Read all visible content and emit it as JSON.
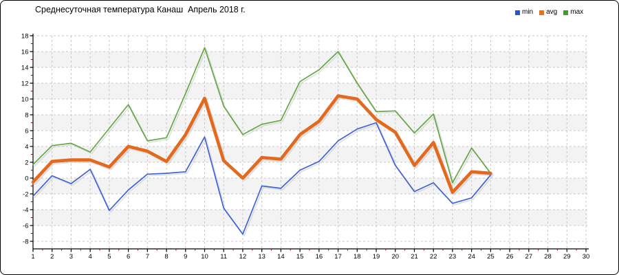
{
  "title": "Среднесуточная температура Канаш  Апрель 2018 г.",
  "legend": {
    "position": "top-right",
    "items": [
      {
        "label": "min",
        "color": "#2253e2"
      },
      {
        "label": "avg",
        "color": "#e8721c"
      },
      {
        "label": "max",
        "color": "#3da122"
      }
    ]
  },
  "chart_data": {
    "type": "line",
    "title": "Среднесуточная температура Канаш  Апрель 2018 г.",
    "x_days": [
      1,
      2,
      3,
      4,
      5,
      6,
      7,
      8,
      9,
      10,
      11,
      12,
      13,
      14,
      15,
      16,
      17,
      18,
      19,
      20,
      21,
      22,
      23,
      24,
      25
    ],
    "series": [
      {
        "name": "min",
        "color": "#3e63d2",
        "width": 1.7,
        "values": [
          -2.3,
          0.3,
          -0.7,
          1.1,
          -4.1,
          -1.5,
          0.5,
          0.6,
          0.8,
          5.2,
          -3.8,
          -7.1,
          -1.0,
          -1.3,
          1.0,
          2.1,
          4.7,
          6.2,
          7.0,
          1.6,
          -1.7,
          -0.6,
          -3.2,
          -2.5,
          0.4
        ]
      },
      {
        "name": "avg",
        "color": "#e2691d",
        "width": 4.6,
        "values": [
          -0.5,
          2.1,
          2.3,
          2.3,
          1.4,
          4.0,
          3.4,
          2.1,
          5.5,
          10.1,
          2.2,
          0.0,
          2.6,
          2.4,
          5.5,
          7.2,
          10.4,
          10.0,
          7.4,
          5.8,
          1.6,
          4.5,
          -1.8,
          0.8,
          0.6
        ]
      },
      {
        "name": "max",
        "color": "#63a845",
        "width": 1.7,
        "values": [
          1.7,
          4.1,
          4.4,
          3.3,
          6.3,
          9.3,
          4.7,
          5.1,
          10.7,
          16.5,
          9.1,
          5.5,
          6.8,
          7.3,
          12.2,
          13.7,
          16.0,
          12.0,
          8.4,
          8.5,
          5.7,
          8.1,
          -0.6,
          3.8,
          0.6
        ]
      }
    ],
    "x_tick_labels": [
      "1",
      "2",
      "3",
      "4",
      "5",
      "6",
      "7",
      "8",
      "9",
      "10",
      "11",
      "12",
      "13",
      "14",
      "15",
      "16",
      "17",
      "18",
      "19",
      "20",
      "21",
      "22",
      "23",
      "24",
      "25",
      "26",
      "27",
      "28",
      "29",
      "30"
    ],
    "y_tick_labels": [
      "18",
      "16",
      "14",
      "12",
      "10",
      "8",
      "6",
      "4",
      "2",
      "0",
      "-2",
      "-4",
      "-6",
      "-8"
    ],
    "xlim": [
      1,
      30
    ],
    "ylim": [
      -8,
      18
    ],
    "y_tick_step": 2,
    "grid": true,
    "legend_position": "top-right",
    "colors": {
      "grid": "#c8c8c8",
      "stripe": "#f3f3f3",
      "axis": "#000000",
      "minor_tick": "#aa0000",
      "shadow": "#c9c9c9",
      "label": "#000000"
    }
  }
}
